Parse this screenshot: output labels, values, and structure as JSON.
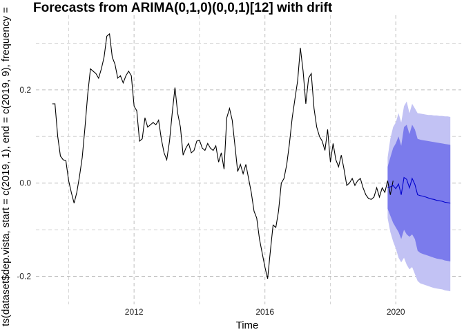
{
  "chart_data": {
    "type": "line",
    "title": "Forecasts from ARIMA(0,1,0)(0,0,1)[12] with drift",
    "xlabel": "Time",
    "ylabel": "ts(dataset$dep.vista, start = c(2019, 1), end = c(2019, 9), frequency =",
    "xlim": [
      2009.0,
      2022.0
    ],
    "ylim": [
      -0.26,
      0.36
    ],
    "x_ticks": [
      2012,
      2016,
      2020
    ],
    "x_tick_labels": [
      "2012",
      "2016",
      "2020"
    ],
    "y_ticks": [
      -0.2,
      0.0,
      0.2
    ],
    "y_tick_labels": [
      "-0.2",
      "0.0",
      "0.2"
    ],
    "grid": true,
    "colors": {
      "history": "#000000",
      "forecast": "#0000cc",
      "band80": "#7b7bec",
      "band95": "#c2c2f4",
      "grid": "#bdbdbd"
    },
    "history": {
      "start": 2009.5,
      "frequency": 12,
      "values": [
        0.17,
        0.17,
        0.1,
        0.058,
        0.05,
        0.048,
        0.005,
        -0.02,
        -0.043,
        -0.02,
        0.015,
        0.055,
        0.12,
        0.19,
        0.245,
        0.24,
        0.235,
        0.225,
        0.245,
        0.27,
        0.315,
        0.32,
        0.27,
        0.255,
        0.225,
        0.23,
        0.215,
        0.23,
        0.24,
        0.23,
        0.165,
        0.155,
        0.09,
        0.095,
        0.14,
        0.12,
        0.125,
        0.13,
        0.125,
        0.135,
        0.095,
        0.065,
        0.05,
        0.09,
        0.15,
        0.205,
        0.15,
        0.12,
        0.06,
        0.075,
        0.085,
        0.065,
        0.07,
        0.09,
        0.092,
        0.075,
        0.07,
        0.085,
        0.075,
        0.07,
        0.08,
        0.045,
        0.065,
        0.03,
        0.14,
        0.16,
        0.135,
        0.08,
        0.025,
        0.04,
        0.02,
        0.04,
        0.01,
        -0.02,
        -0.06,
        -0.075,
        -0.12,
        -0.15,
        -0.18,
        -0.205,
        -0.145,
        -0.09,
        -0.095,
        -0.06,
        0.0,
        0.01,
        0.04,
        0.085,
        0.14,
        0.18,
        0.22,
        0.29,
        0.24,
        0.17,
        0.225,
        0.235,
        0.16,
        0.12,
        0.1,
        0.09,
        0.07,
        0.115,
        0.045,
        0.085,
        0.05,
        0.035,
        0.06,
        0.03,
        -0.005,
        0.0,
        0.01,
        -0.005,
        0.005,
        0.01,
        -0.01,
        -0.025,
        -0.033,
        -0.035,
        -0.03,
        -0.01,
        -0.03,
        -0.01,
        -0.02,
        0.005,
        -0.025,
        0.005
      ]
    },
    "forecast": {
      "start": 2019.75,
      "frequency": 12,
      "mean": [
        -0.01,
        -0.008,
        -0.005,
        -0.012,
        -0.002,
        -0.025,
        0.012,
        0.008,
        -0.01,
        0.01,
        -0.003,
        -0.025,
        -0.027,
        -0.028,
        -0.03,
        -0.032,
        -0.034,
        -0.035,
        -0.037,
        -0.038,
        -0.039,
        -0.041,
        -0.042,
        -0.043
      ],
      "lo80": [
        -0.055,
        -0.07,
        -0.085,
        -0.095,
        -0.105,
        -0.12,
        -0.1,
        -0.11,
        -0.115,
        -0.11,
        -0.12,
        -0.145,
        -0.15,
        -0.152,
        -0.154,
        -0.156,
        -0.158,
        -0.16,
        -0.162,
        -0.163,
        -0.164,
        -0.166,
        -0.167,
        -0.168
      ],
      "hi80": [
        0.035,
        0.055,
        0.075,
        0.085,
        0.1,
        0.08,
        0.12,
        0.125,
        0.105,
        0.125,
        0.115,
        0.095,
        0.093,
        0.092,
        0.091,
        0.09,
        0.089,
        0.088,
        0.087,
        0.086,
        0.085,
        0.084,
        0.083,
        0.082
      ],
      "lo95": [
        -0.075,
        -0.105,
        -0.125,
        -0.14,
        -0.16,
        -0.17,
        -0.16,
        -0.175,
        -0.185,
        -0.18,
        -0.195,
        -0.21,
        -0.215,
        -0.217,
        -0.219,
        -0.221,
        -0.223,
        -0.225,
        -0.226,
        -0.227,
        -0.228,
        -0.23,
        -0.231,
        -0.232
      ],
      "hi95": [
        0.055,
        0.095,
        0.12,
        0.13,
        0.15,
        0.13,
        0.165,
        0.175,
        0.15,
        0.17,
        0.16,
        0.15,
        0.149,
        0.148,
        0.147,
        0.146,
        0.146,
        0.145,
        0.145,
        0.144,
        0.144,
        0.143,
        0.143,
        0.142
      ]
    }
  }
}
